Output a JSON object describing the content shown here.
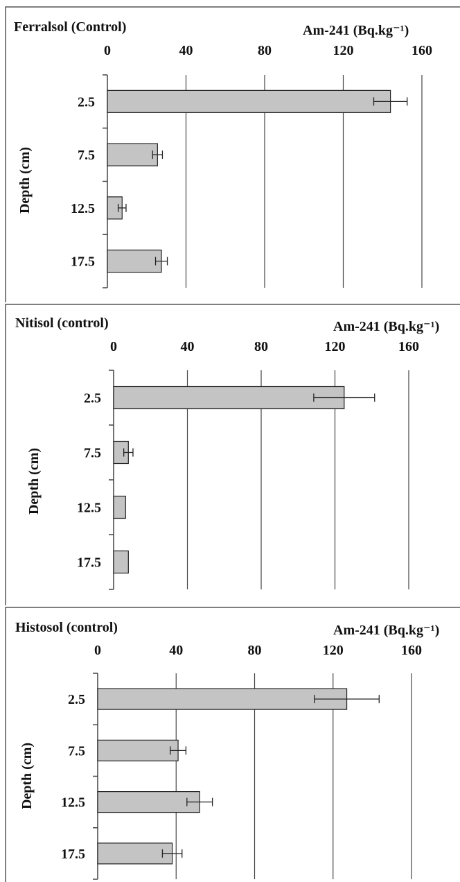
{
  "chart_data": [
    {
      "type": "bar",
      "orientation": "horizontal",
      "title": "Ferralsol (Control)",
      "xlabel": "Am-241 (Bq.kg⁻¹)",
      "ylabel": "Depth (cm)",
      "categories": [
        "2.5",
        "7.5",
        "12.5",
        "17.5"
      ],
      "values": [
        144,
        25.5,
        7.5,
        27.5
      ],
      "errors": [
        8.5,
        2.5,
        2,
        3
      ],
      "xlim": [
        0,
        160
      ],
      "xticks": [
        "0",
        "40",
        "80",
        "120",
        "160"
      ],
      "grid": true,
      "x_axis_position": "top"
    },
    {
      "type": "bar",
      "orientation": "horizontal",
      "title": "Nitisol (control)",
      "xlabel": "Am-241 (Bq.kg⁻¹)",
      "ylabel": "Depth (cm)",
      "categories": [
        "2.5",
        "7.5",
        "12.5",
        "17.5"
      ],
      "values": [
        125,
        8,
        6.5,
        8
      ],
      "errors": [
        16.5,
        2.5,
        0,
        0
      ],
      "xlim": [
        0,
        160
      ],
      "xticks": [
        "0",
        "40",
        "80",
        "120",
        "160"
      ],
      "grid": true,
      "x_axis_position": "top"
    },
    {
      "type": "bar",
      "orientation": "horizontal",
      "title": "Histosol (control)",
      "xlabel": "Am-241 (Bq.kg⁻¹)",
      "ylabel": "Depth (cm)",
      "categories": [
        "2.5",
        "7.5",
        "12.5",
        "17.5"
      ],
      "values": [
        127,
        41,
        52,
        38
      ],
      "errors": [
        16.5,
        4,
        6.5,
        5
      ],
      "xlim": [
        0,
        160
      ],
      "xticks": [
        "0",
        "40",
        "80",
        "120",
        "160"
      ],
      "grid": true,
      "x_axis_position": "top"
    }
  ]
}
